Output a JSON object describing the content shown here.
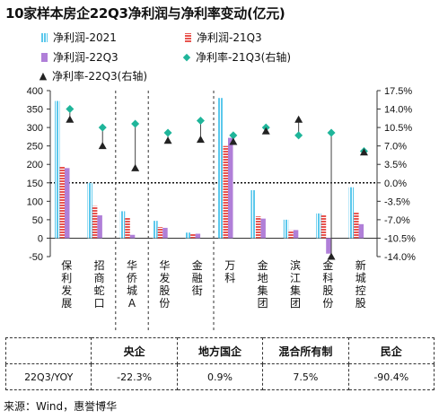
{
  "title": "10家样本房企22Q3净利润与净利率变动(亿元)",
  "legend": {
    "item1": "净利润-2021",
    "item2": "净利润-21Q3",
    "item3": "净利润-22Q3",
    "item4": "净利率-21Q3(右轴)",
    "item5": "净利率-22Q3(右轴)"
  },
  "colors": {
    "profit_2021": "#5bc8ec",
    "profit_21q3": "#e8544e",
    "profit_22q3": "#b07fd8",
    "margin_21q3": "#1fb59a",
    "margin_22q3": "#222222"
  },
  "icons": {
    "margin_21q3": "diamond-marker",
    "margin_22q3": "triangle-marker"
  },
  "chart_data": {
    "type": "bar",
    "categories": [
      "保利发展",
      "招商蛇口",
      "华侨城A",
      "华发股份",
      "金融街",
      "万科",
      "金地集团",
      "滨江集团",
      "金科股份",
      "新城控股"
    ],
    "series": [
      {
        "name": "净利润-2021",
        "axis": "left",
        "values": [
          372,
          150,
          73,
          47,
          15,
          380,
          130,
          50,
          67,
          138
        ]
      },
      {
        "name": "净利润-21Q3",
        "axis": "left",
        "values": [
          195,
          87,
          57,
          30,
          11,
          250,
          59,
          21,
          62,
          69
        ]
      },
      {
        "name": "净利润-22Q3",
        "axis": "left",
        "values": [
          190,
          62,
          9,
          28,
          12,
          272,
          53,
          22,
          -42,
          38
        ]
      },
      {
        "name": "净利率-21Q3(右轴)",
        "axis": "right",
        "type": "scatter",
        "values": [
          14.0,
          10.5,
          11.2,
          9.5,
          11.8,
          9.0,
          10.5,
          9.0,
          9.5,
          6.0
        ]
      },
      {
        "name": "净利率-22Q3(右轴)",
        "axis": "right",
        "type": "scatter",
        "values": [
          12.0,
          7.0,
          2.8,
          8.0,
          8.2,
          7.8,
          9.8,
          12.0,
          -14.0,
          5.8
        ]
      }
    ],
    "y_left": {
      "ticks": [
        "400",
        "350",
        "300",
        "250",
        "200",
        "150",
        "100",
        "50",
        "0",
        "-50"
      ],
      "ylim": [
        -50,
        400
      ]
    },
    "y_right": {
      "ticks": [
        "17.5%",
        "14.0%",
        "10.5%",
        "7.0%",
        "3.5%",
        "0.0%",
        "-3.5%",
        "-7.0%",
        "-10.5%",
        "-14.0%"
      ],
      "ylim": [
        -14.0,
        17.5
      ]
    },
    "group_dividers_after": [
      1,
      2,
      4
    ],
    "zero_line_right": 0,
    "grid": false
  },
  "summary": {
    "header": [
      "",
      "央企",
      "地方国企",
      "混合所有制",
      "民企"
    ],
    "row_label": "22Q3/YOY",
    "values": [
      "-22.3%",
      "0.9%",
      "7.5%",
      "-90.4%"
    ]
  },
  "source": "来源：Wind，惠誉博华"
}
